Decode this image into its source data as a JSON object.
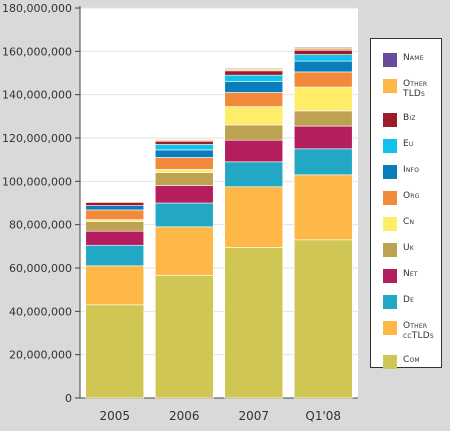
{
  "chart_data": {
    "type": "bar",
    "stacked": true,
    "categories": [
      "2005",
      "2006",
      "2007",
      "Q1'08"
    ],
    "series": [
      {
        "name": "Com",
        "color": "#cfc653",
        "values": [
          43000000,
          56500000,
          69500000,
          73000000
        ]
      },
      {
        "name": "Other ccTLDs",
        "color": "#fdb847",
        "values": [
          18000000,
          22500000,
          28000000,
          30000000
        ]
      },
      {
        "name": "De",
        "color": "#22a8c4",
        "values": [
          9500000,
          11000000,
          11500000,
          12000000
        ]
      },
      {
        "name": "Net",
        "color": "#b51e5e",
        "values": [
          6500000,
          8000000,
          10000000,
          10500000
        ]
      },
      {
        "name": "Uk",
        "color": "#bca252",
        "values": [
          4500000,
          6000000,
          7000000,
          7000000
        ]
      },
      {
        "name": "Cn",
        "color": "#ffed6a",
        "values": [
          800000,
          1500000,
          8500000,
          11000000
        ]
      },
      {
        "name": "Org",
        "color": "#f28a3c",
        "values": [
          4500000,
          5500000,
          6500000,
          7000000
        ]
      },
      {
        "name": "Info",
        "color": "#0a7dbc",
        "values": [
          2000000,
          3500000,
          5000000,
          5000000
        ]
      },
      {
        "name": "Eu",
        "color": "#10c2ea",
        "values": [
          0,
          2500000,
          3000000,
          3000000
        ]
      },
      {
        "name": "Biz",
        "color": "#9b1d2b",
        "values": [
          1500000,
          1500000,
          2000000,
          2000000
        ]
      },
      {
        "name": "Other TLDs",
        "color": "#fdb847",
        "values": [
          300000,
          500000,
          700000,
          800000
        ]
      },
      {
        "name": "Name",
        "color": "#6a4b9b",
        "values": [
          200000,
          300000,
          400000,
          500000
        ]
      }
    ],
    "y_ticks": [
      "0",
      "20,000,000",
      "40,000,000",
      "60,000,000",
      "80,000,000",
      "100,000,000",
      "120,000,000",
      "140,000,000",
      "160,000,000",
      "180,000,000"
    ],
    "ylim": [
      0,
      180000000
    ],
    "title": "",
    "xlabel": "",
    "ylabel": "",
    "legend_position": "right",
    "grid": true
  }
}
